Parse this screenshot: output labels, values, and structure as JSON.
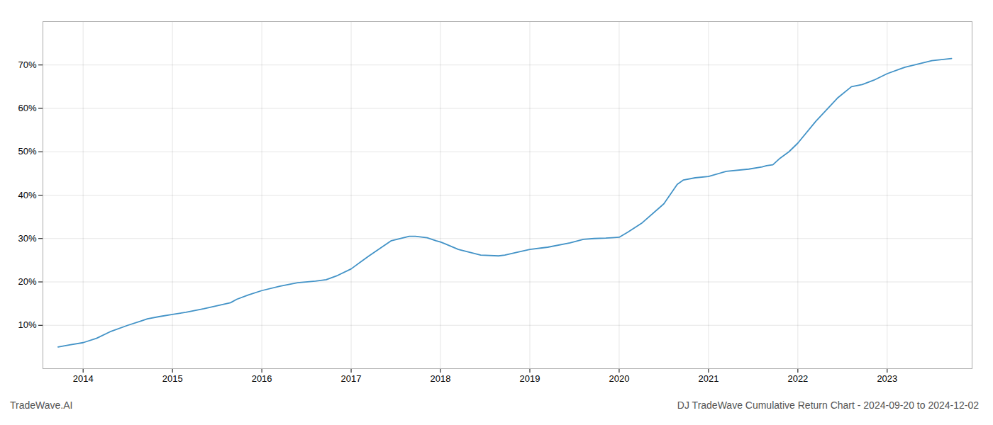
{
  "chart_data": {
    "type": "line",
    "title": "DJ TradeWave Cumulative Return Chart - 2024-09-20 to 2024-12-02",
    "annotations": [
      "TradeWave.AI"
    ],
    "color": "#4393c7",
    "grid": true,
    "x": [
      2013.72,
      2013.85,
      2014.0,
      2014.15,
      2014.3,
      2014.5,
      2014.65,
      2014.72,
      2014.85,
      2015.0,
      2015.15,
      2015.35,
      2015.5,
      2015.65,
      2015.72,
      2015.85,
      2016.0,
      2016.2,
      2016.4,
      2016.6,
      2016.72,
      2016.85,
      2017.0,
      2017.2,
      2017.45,
      2017.65,
      2017.72,
      2017.85,
      2017.95,
      2018.0,
      2018.05,
      2018.2,
      2018.45,
      2018.65,
      2018.72,
      2018.85,
      2019.0,
      2019.2,
      2019.45,
      2019.6,
      2019.72,
      2019.85,
      2019.92,
      2020.0,
      2020.1,
      2020.25,
      2020.5,
      2020.65,
      2020.72,
      2020.85,
      2021.0,
      2021.2,
      2021.45,
      2021.6,
      2021.65,
      2021.72,
      2021.8,
      2021.9,
      2022.0,
      2022.2,
      2022.45,
      2022.6,
      2022.72,
      2022.85,
      2023.0,
      2023.2,
      2023.5,
      2023.72
    ],
    "values": [
      5.0,
      5.5,
      6.0,
      7.0,
      8.5,
      10.0,
      11.0,
      11.5,
      12.0,
      12.5,
      13.0,
      13.8,
      14.5,
      15.2,
      16.0,
      17.0,
      18.0,
      19.0,
      19.8,
      20.2,
      20.5,
      21.5,
      23.0,
      26.0,
      29.5,
      30.5,
      30.5,
      30.2,
      29.5,
      29.2,
      28.8,
      27.5,
      26.2,
      26.0,
      26.2,
      26.8,
      27.5,
      28.0,
      29.0,
      29.8,
      30.0,
      30.1,
      30.2,
      30.3,
      31.5,
      33.5,
      38.0,
      42.5,
      43.5,
      44.0,
      44.3,
      45.5,
      46.0,
      46.5,
      46.8,
      47.0,
      48.5,
      50.0,
      52.0,
      57.0,
      62.5,
      65.0,
      65.5,
      66.5,
      68.0,
      69.5,
      71.0,
      71.5
    ],
    "xlim": [
      2013.55,
      2023.95
    ],
    "xticks": [
      2014,
      2015,
      2016,
      2017,
      2018,
      2019,
      2020,
      2021,
      2022,
      2023
    ],
    "ylim": [
      0,
      80
    ],
    "yticks": [
      {
        "value": 10,
        "label": "10%"
      },
      {
        "value": 20,
        "label": "20%"
      },
      {
        "value": 30,
        "label": "30%"
      },
      {
        "value": 40,
        "label": "40%"
      },
      {
        "value": 50,
        "label": "50%"
      },
      {
        "value": 60,
        "label": "60%"
      },
      {
        "value": 70,
        "label": "70%"
      }
    ]
  }
}
